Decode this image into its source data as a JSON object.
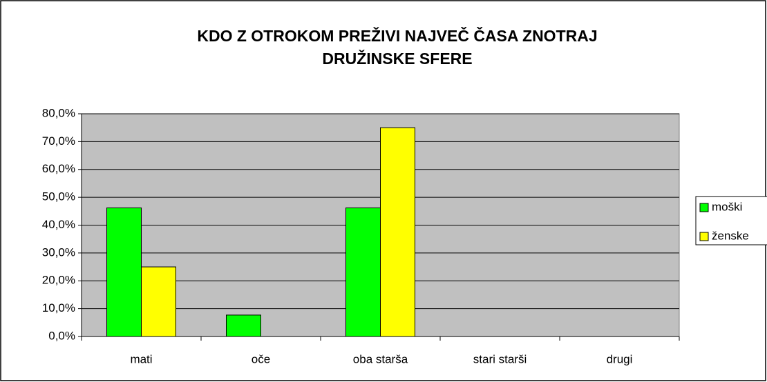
{
  "chart_data": {
    "type": "bar",
    "title": "KDO Z OTROKOM PREŽIVI NAJVEČ ČASA ZNOTRAJ DRUŽINSKE SFERE",
    "categories": [
      "mati",
      "oče",
      "oba starša",
      "stari starši",
      "drugi"
    ],
    "series": [
      {
        "name": "moški",
        "color": "#00ff00",
        "values": [
          46.2,
          7.7,
          46.2,
          0,
          0
        ]
      },
      {
        "name": "ženske",
        "color": "#ffff00",
        "values": [
          25,
          0,
          75,
          0,
          0
        ]
      }
    ],
    "ylim": [
      0,
      80
    ],
    "yticks": [
      {
        "value": 0,
        "label": "0,0%"
      },
      {
        "value": 10,
        "label": "10,0%"
      },
      {
        "value": 20,
        "label": "20,0%"
      },
      {
        "value": 30,
        "label": "30,0%"
      },
      {
        "value": 40,
        "label": "40,0%"
      },
      {
        "value": 50,
        "label": "50,0%"
      },
      {
        "value": 60,
        "label": "60,0%"
      },
      {
        "value": 70,
        "label": "70,0%"
      },
      {
        "value": 80,
        "label": "80,0%"
      }
    ],
    "grid": true,
    "legend": "right"
  }
}
